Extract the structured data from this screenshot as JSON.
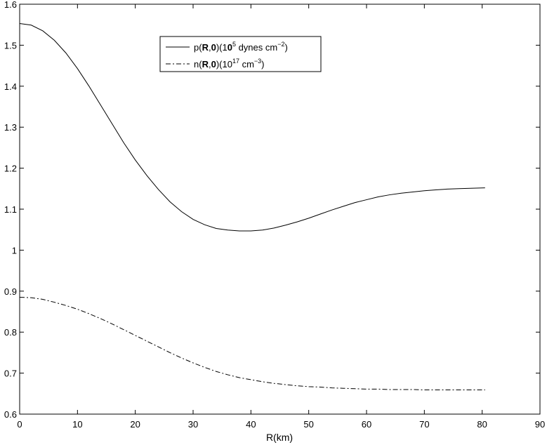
{
  "chart_data": {
    "type": "line",
    "xlabel": "R(km)",
    "ylabel": "",
    "xlim": [
      0,
      90
    ],
    "ylim": [
      0.6,
      1.6
    ],
    "xticks": [
      0,
      10,
      20,
      30,
      40,
      50,
      60,
      70,
      80,
      90
    ],
    "yticks": [
      0.6,
      0.7,
      0.8,
      0.9,
      1,
      1.1,
      1.2,
      1.3,
      1.4,
      1.5,
      1.6
    ],
    "ytick_labels": [
      "0.6",
      "0.7",
      "0.8",
      "0.9",
      "1",
      "1.1",
      "1.2",
      "1.3",
      "1.4",
      "1.5",
      "1.6"
    ],
    "grid": false,
    "legend_position": "top-center",
    "series": [
      {
        "name": "p(R,0)(10^5 dynes cm^-2)",
        "legend": {
          "pre": "p(",
          "b1": "R",
          "comma": ",",
          "b2": "0",
          "mid": ")(1",
          "b3": "0",
          "sup": "5",
          "post": " dynes cm",
          "unit_sup": "−2",
          "end": ")"
        },
        "style": "solid",
        "color": "#000000",
        "x": [
          0,
          2,
          4,
          6,
          8,
          10,
          12,
          14,
          16,
          18,
          20,
          22,
          24,
          26,
          28,
          30,
          32,
          34,
          36,
          38,
          40,
          42,
          44,
          46,
          48,
          50,
          52,
          54,
          56,
          58,
          60,
          62,
          64,
          66,
          68,
          70,
          72,
          74,
          76,
          78,
          80.5
        ],
        "y": [
          1.553,
          1.549,
          1.535,
          1.512,
          1.481,
          1.443,
          1.4,
          1.354,
          1.308,
          1.262,
          1.22,
          1.182,
          1.148,
          1.118,
          1.094,
          1.075,
          1.062,
          1.053,
          1.049,
          1.047,
          1.047,
          1.049,
          1.054,
          1.061,
          1.069,
          1.078,
          1.088,
          1.098,
          1.107,
          1.116,
          1.123,
          1.13,
          1.135,
          1.139,
          1.142,
          1.145,
          1.147,
          1.149,
          1.15,
          1.151,
          1.152
        ]
      },
      {
        "name": "n(R,0)(10^17 cm^-3)",
        "legend": {
          "pre": "n(",
          "b1": "R",
          "comma": ",",
          "b2": "0",
          "mid": ")(10",
          "b3": "",
          "sup": "17",
          "post": " cm",
          "unit_sup": "−3",
          "end": ")"
        },
        "style": "dashdot",
        "color": "#000000",
        "x": [
          0,
          2,
          4,
          6,
          8,
          10,
          12,
          14,
          16,
          18,
          20,
          22,
          24,
          26,
          28,
          30,
          32,
          34,
          36,
          38,
          40,
          42,
          44,
          46,
          48,
          50,
          52,
          54,
          56,
          58,
          60,
          62,
          64,
          66,
          68,
          70,
          72,
          74,
          76,
          78,
          80.5
        ],
        "y": [
          0.885,
          0.884,
          0.88,
          0.873,
          0.865,
          0.856,
          0.845,
          0.833,
          0.82,
          0.806,
          0.792,
          0.778,
          0.764,
          0.75,
          0.737,
          0.725,
          0.714,
          0.704,
          0.696,
          0.689,
          0.684,
          0.679,
          0.675,
          0.672,
          0.669,
          0.667,
          0.666,
          0.664,
          0.663,
          0.662,
          0.661,
          0.661,
          0.66,
          0.66,
          0.66,
          0.659,
          0.659,
          0.659,
          0.659,
          0.659,
          0.659
        ]
      }
    ]
  }
}
